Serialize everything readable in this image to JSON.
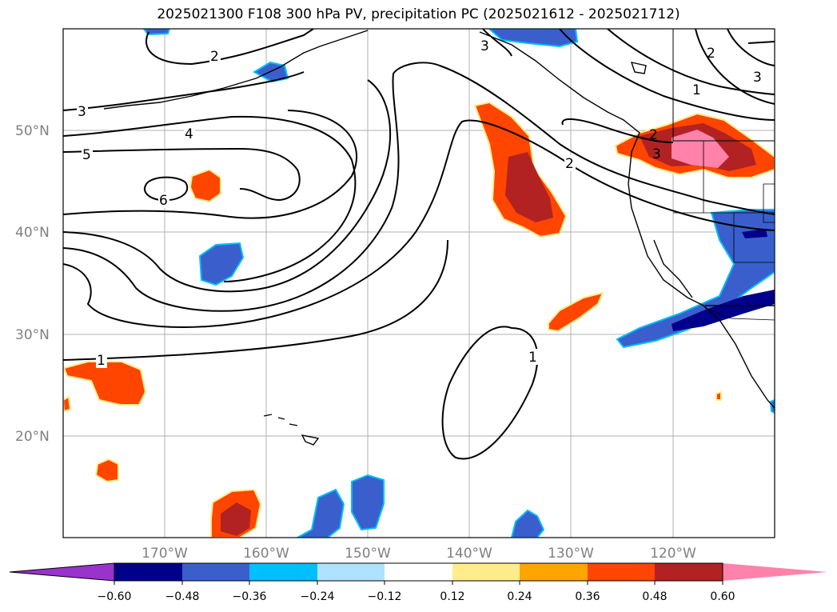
{
  "title": "2025021300 F108 300 hPa PV, precipitation PC (2025021612 - 2025021712)",
  "map": {
    "lat_labels": [
      "50°N",
      "40°N",
      "30°N",
      "20°N"
    ],
    "lon_labels": [
      "170°W",
      "160°W",
      "150°W",
      "140°W",
      "130°W",
      "120°W"
    ],
    "gridlines": true,
    "contour_labels": [
      "1",
      "2",
      "3",
      "4",
      "5",
      "6"
    ]
  },
  "colorbar": {
    "ticks": [
      "−0.60",
      "−0.48",
      "−0.36",
      "−0.24",
      "−0.12",
      "0.12",
      "0.24",
      "0.36",
      "0.48",
      "0.60"
    ],
    "colors": [
      "#9933cc",
      "#00008b",
      "#3a5fcd",
      "#00bfff",
      "#b0e2ff",
      "#ffffff",
      "#ffec8b",
      "#ffa500",
      "#ff4500",
      "#b22222",
      "#ff82ab"
    ]
  }
}
